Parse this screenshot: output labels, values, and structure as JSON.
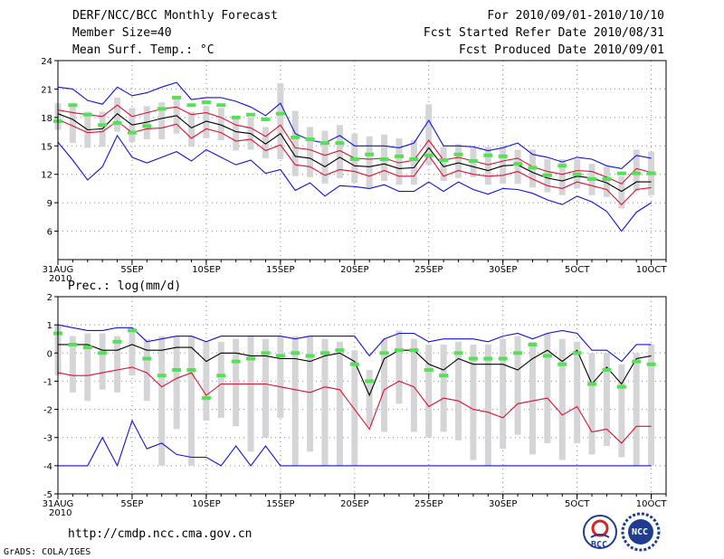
{
  "header": {
    "title": "DERF/NCC/BCC Monthly Forecast",
    "member_size": "Member Size=40",
    "variable": "Mean Surf. Temp.: °C",
    "period": "For 2010/09/01-2010/10/10",
    "started": "Fcst Started Refer Date 2010/08/31",
    "produced": "Fcst Produced Date 2010/09/01"
  },
  "footer": {
    "url": "http://cmdp.ncc.cma.gov.cn",
    "grads": "GrADS: COLA/IGES",
    "logo_bcc": "BCC",
    "logo_ncc": "NCC"
  },
  "colors": {
    "envelope": "#1010dd",
    "spread": "#dd1030",
    "mean": "#000000",
    "box": "#d5d5d8",
    "obs": "#55e055",
    "grid": "#888888"
  },
  "chart_data": [
    {
      "type": "line",
      "title": "Mean Surf. Temp.: °C",
      "x_tick_labels": [
        "31AUG\n2010",
        "5SEP",
        "10SEP",
        "15SEP",
        "20SEP",
        "25SEP",
        "30SEP",
        "5OCT",
        "10OCT"
      ],
      "x_tick_days": [
        0,
        5,
        10,
        15,
        20,
        25,
        30,
        35,
        40
      ],
      "y_ticks": [
        6,
        9,
        12,
        15,
        18,
        21,
        24
      ],
      "ylim": [
        3,
        24
      ],
      "day_range": [
        0,
        41
      ],
      "series": [
        {
          "name": "max",
          "values": [
            21.2,
            21.0,
            19.8,
            19.4,
            21.2,
            20.3,
            20.6,
            21.2,
            21.7,
            19.9,
            20.1,
            20.1,
            19.7,
            19.1,
            18.2,
            19.5,
            16.3,
            15.6,
            15.3,
            16.1,
            15.0,
            15.0,
            15.0,
            14.8,
            15.3,
            17.7,
            15.0,
            15.0,
            14.9,
            14.5,
            14.8,
            15.3,
            14.1,
            13.8,
            13.3,
            13.8,
            13.6,
            12.9,
            12.6,
            14.0,
            13.7
          ]
        },
        {
          "name": "upper",
          "values": [
            18.8,
            18.5,
            18.3,
            18.1,
            19.3,
            18.1,
            18.5,
            18.9,
            19.1,
            18.3,
            18.5,
            18.0,
            17.2,
            16.9,
            16.0,
            17.2,
            14.8,
            14.6,
            14.0,
            14.5,
            13.7,
            13.6,
            13.7,
            13.2,
            13.5,
            15.6,
            13.5,
            13.8,
            13.4,
            13.0,
            13.4,
            13.7,
            12.8,
            12.3,
            12.0,
            12.4,
            12.3,
            11.7,
            11.0,
            12.6,
            12.2
          ]
        },
        {
          "name": "mean",
          "values": [
            18.4,
            17.8,
            16.7,
            16.8,
            18.4,
            17.2,
            17.5,
            17.9,
            18.2,
            16.9,
            17.6,
            17.2,
            16.5,
            16.3,
            15.2,
            16.3,
            13.9,
            13.7,
            12.8,
            13.8,
            12.9,
            12.8,
            13.1,
            12.6,
            12.7,
            14.8,
            12.8,
            13.2,
            12.8,
            12.4,
            12.9,
            13.0,
            12.2,
            11.6,
            11.3,
            11.8,
            11.6,
            11.1,
            10.2,
            11.2,
            11.2
          ]
        },
        {
          "name": "lower",
          "values": [
            17.8,
            17.1,
            16.4,
            16.5,
            17.6,
            16.4,
            16.8,
            16.9,
            17.3,
            15.8,
            16.8,
            16.4,
            15.5,
            15.7,
            14.5,
            15.1,
            13.0,
            12.8,
            11.9,
            12.5,
            12.3,
            11.8,
            12.4,
            11.8,
            11.8,
            14.0,
            11.8,
            12.4,
            12.0,
            11.8,
            11.9,
            12.3,
            11.5,
            10.8,
            10.5,
            11.2,
            10.8,
            10.4,
            8.8,
            10.4,
            10.6
          ]
        },
        {
          "name": "min",
          "values": [
            15.4,
            13.5,
            11.4,
            12.8,
            16.1,
            13.8,
            13.2,
            13.8,
            14.4,
            13.4,
            14.6,
            13.8,
            13.0,
            13.5,
            12.1,
            12.5,
            10.3,
            11.1,
            9.7,
            10.8,
            10.7,
            10.5,
            10.9,
            10.2,
            10.2,
            11.2,
            10.2,
            11.2,
            10.4,
            9.9,
            10.5,
            10.4,
            10.0,
            9.3,
            8.8,
            9.7,
            9.1,
            8.1,
            6.0,
            8.0,
            9.0
          ]
        },
        {
          "name": "box_high",
          "values": [
            19.5,
            19.1,
            18.6,
            18.6,
            20.1,
            19.0,
            19.2,
            19.6,
            20.0,
            18.6,
            19.2,
            19.0,
            18.0,
            18.0,
            17.0,
            21.6,
            18.7,
            17.0,
            16.6,
            17.2,
            16.3,
            16.0,
            16.2,
            15.8,
            15.6,
            19.4,
            14.9,
            15.2,
            14.8,
            14.9,
            15.1,
            14.6,
            14.6,
            13.6,
            13.6,
            13.6,
            13.1,
            12.8,
            11.8,
            14.6,
            14.4
          ]
        },
        {
          "name": "box_low",
          "values": [
            16.7,
            15.3,
            14.8,
            14.9,
            16.5,
            15.4,
            15.7,
            15.7,
            16.3,
            14.9,
            15.8,
            15.6,
            14.5,
            14.6,
            13.7,
            13.6,
            11.8,
            11.7,
            11.0,
            11.6,
            11.1,
            10.6,
            11.3,
            10.9,
            10.9,
            13.0,
            11.3,
            11.6,
            11.7,
            10.9,
            11.0,
            11.0,
            10.6,
            10.1,
            9.8,
            10.5,
            9.8,
            9.6,
            8.4,
            10.2,
            9.8
          ]
        },
        {
          "name": "observed",
          "values": [
            17.6,
            19.3,
            18.3,
            17.2,
            17.4,
            16.4,
            17.1,
            18.9,
            20.1,
            19.3,
            19.6,
            19.3,
            18.0,
            18.3,
            17.8,
            18.4,
            15.9,
            15.7,
            15.3,
            15.3,
            13.6,
            14.1,
            13.6,
            13.9,
            13.6,
            14.0,
            13.5,
            14.1,
            13.4,
            14.0,
            13.9,
            13.1,
            12.7,
            11.9,
            12.9,
            12.0,
            11.5,
            11.5,
            12.1,
            12.1,
            12.1
          ]
        }
      ]
    },
    {
      "type": "line",
      "title": "Prec.: log(mm/d)",
      "x_tick_labels": [
        "31AUG\n2010",
        "5SEP",
        "10SEP",
        "15SEP",
        "20SEP",
        "25SEP",
        "30SEP",
        "5OCT",
        "10OCT"
      ],
      "x_tick_days": [
        0,
        5,
        10,
        15,
        20,
        25,
        30,
        35,
        40
      ],
      "y_ticks": [
        -5,
        -4,
        -3,
        -2,
        -1,
        0,
        1,
        2
      ],
      "ylim": [
        -5,
        2
      ],
      "day_range": [
        0,
        41
      ],
      "series": [
        {
          "name": "max",
          "values": [
            1.0,
            0.9,
            0.8,
            0.8,
            0.9,
            0.9,
            0.4,
            0.5,
            0.6,
            0.6,
            0.4,
            0.6,
            0.6,
            0.6,
            0.6,
            0.6,
            0.5,
            0.6,
            0.6,
            0.6,
            0.6,
            -0.1,
            0.5,
            0.7,
            0.7,
            0.4,
            0.5,
            0.5,
            0.5,
            0.4,
            0.6,
            0.7,
            0.5,
            0.7,
            0.8,
            0.7,
            0.1,
            0.1,
            -0.3,
            0.3,
            0.3
          ]
        },
        {
          "name": "mean",
          "values": [
            0.3,
            0.3,
            0.3,
            0.1,
            0.1,
            0.3,
            0.1,
            0.1,
            0.2,
            0.2,
            -0.3,
            0.0,
            0.0,
            -0.1,
            -0.1,
            -0.2,
            -0.2,
            -0.3,
            -0.1,
            0.0,
            -0.3,
            -1.5,
            -0.2,
            0.1,
            0.1,
            -0.4,
            -0.6,
            -0.2,
            -0.4,
            -0.4,
            -0.4,
            -0.6,
            -0.2,
            0.1,
            -0.3,
            0.1,
            -1.1,
            -0.5,
            -1.1,
            -0.2,
            -0.1
          ]
        },
        {
          "name": "spread_low",
          "values": [
            -0.7,
            -0.8,
            -0.8,
            -0.7,
            -0.6,
            -0.5,
            -0.7,
            -1.2,
            -0.9,
            -0.7,
            -1.5,
            -1.1,
            -1.1,
            -1.1,
            -1.1,
            -1.2,
            -1.3,
            -1.4,
            -1.2,
            -1.3,
            -2.0,
            -2.7,
            -1.3,
            -1.0,
            -1.2,
            -1.9,
            -1.6,
            -1.7,
            -2.0,
            -2.1,
            -2.3,
            -1.8,
            -1.7,
            -1.6,
            -2.2,
            -1.9,
            -2.8,
            -2.7,
            -3.2,
            -2.6,
            -2.6
          ]
        },
        {
          "name": "min",
          "values": [
            -4.0,
            -4.0,
            -4.0,
            -3.0,
            -4.0,
            -2.4,
            -3.4,
            -3.2,
            -3.6,
            -3.7,
            -3.7,
            -4.0,
            -3.3,
            -4.0,
            -3.3,
            -4.0,
            -4.0,
            -4.0,
            -4.0,
            -4.0,
            -4.0,
            -4.0,
            -4.0,
            -4.0,
            -4.0,
            -4.0,
            -4.0,
            -4.0,
            -4.0,
            -4.0,
            -4.0,
            -4.0,
            -4.0,
            -4.0,
            -4.0,
            -4.0,
            -4.0,
            -4.0,
            -4.0,
            -4.0,
            -4.0
          ]
        },
        {
          "name": "box_high",
          "values": [
            1.0,
            0.6,
            0.7,
            0.7,
            0.6,
            0.9,
            0.5,
            0.6,
            0.6,
            0.6,
            0.4,
            0.4,
            0.5,
            0.6,
            0.5,
            0.6,
            0.6,
            0.6,
            0.5,
            0.4,
            0.1,
            -0.6,
            0.5,
            0.8,
            0.5,
            0.3,
            0.3,
            0.4,
            0.3,
            0.3,
            0.5,
            0.6,
            0.4,
            0.7,
            0.5,
            0.4,
            0.0,
            0.0,
            -0.4,
            0.0,
            0.3
          ]
        },
        {
          "name": "box_low",
          "values": [
            -0.8,
            -1.4,
            -1.7,
            -1.3,
            -1.4,
            -0.8,
            -1.7,
            -4.0,
            -2.7,
            -4.0,
            -2.4,
            -2.3,
            -2.6,
            -3.5,
            -3.0,
            -2.3,
            -4.0,
            -3.5,
            -4.0,
            -4.0,
            -4.0,
            -2.6,
            -2.8,
            -1.8,
            -2.8,
            -3.0,
            -2.8,
            -3.1,
            -3.8,
            -4.0,
            -3.4,
            -2.9,
            -3.6,
            -3.2,
            -3.8,
            -3.2,
            -3.6,
            -3.3,
            -3.7,
            -4.0,
            -4.0
          ]
        },
        {
          "name": "observed",
          "values": [
            0.7,
            0.3,
            0.2,
            0.0,
            0.4,
            0.8,
            -0.2,
            -0.8,
            -0.6,
            -0.6,
            -1.6,
            -0.8,
            -0.3,
            -0.2,
            0.0,
            -0.1,
            0.0,
            -0.1,
            0.0,
            0.1,
            -0.4,
            -1.0,
            0.0,
            0.1,
            0.1,
            -0.6,
            -0.8,
            0.0,
            -0.2,
            -0.2,
            -0.2,
            0.0,
            0.3,
            -0.1,
            -0.4,
            0.0,
            -1.1,
            -0.6,
            -1.2,
            -0.3,
            -0.4
          ]
        }
      ]
    }
  ]
}
